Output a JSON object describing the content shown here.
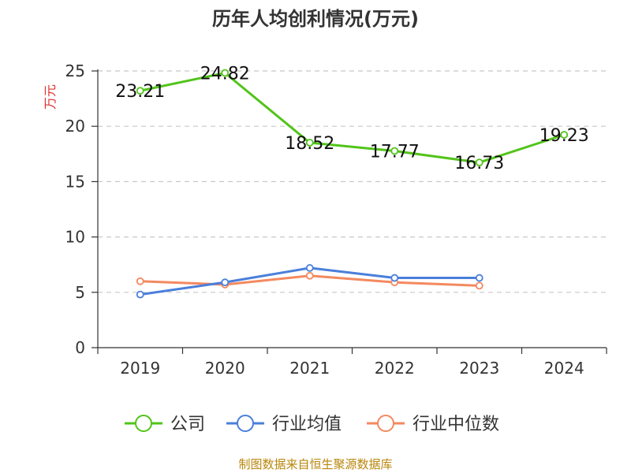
{
  "chart_data": {
    "type": "line",
    "title": "历年人均创利情况(万元)",
    "xlabel": "",
    "ylabel": "万元",
    "categories": [
      "2019",
      "2020",
      "2021",
      "2022",
      "2023",
      "2024"
    ],
    "ylim": [
      0,
      25
    ],
    "yticks": [
      "0",
      "5",
      "10",
      "15",
      "20",
      "25"
    ],
    "grid": true,
    "legend_position": "bottom",
    "series": [
      {
        "name": "公司",
        "color": "#52c41a",
        "values": [
          23.21,
          24.82,
          18.52,
          17.77,
          16.73,
          19.23
        ],
        "labels": [
          "23.21",
          "24.82",
          "18.52",
          "17.77",
          "16.73",
          "19.23"
        ]
      },
      {
        "name": "行业均值",
        "color": "#4a7fdb",
        "values": [
          4.8,
          5.9,
          7.2,
          6.3,
          6.3,
          null
        ]
      },
      {
        "name": "行业中位数",
        "color": "#f4895f",
        "values": [
          6.0,
          5.7,
          6.5,
          5.9,
          5.6,
          null
        ]
      }
    ]
  },
  "ylabel_color": "#e03030",
  "source": "制图数据来自恒生聚源数据库"
}
